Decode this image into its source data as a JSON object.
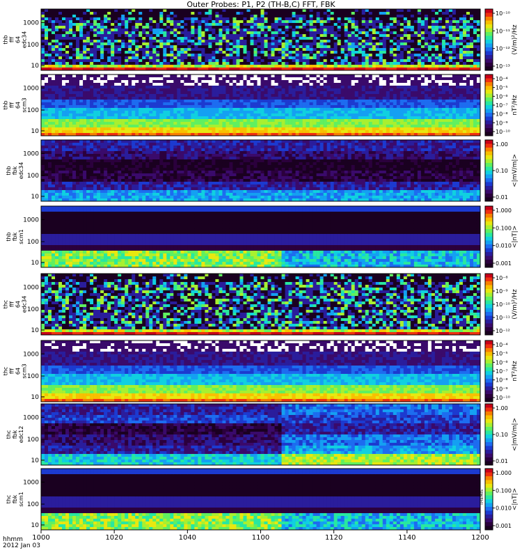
{
  "title": "Outer Probes: P1, P2 (TH-B,C) FFT, FBK",
  "x_axis": {
    "row1_label": "hhmm",
    "row2_label": "2012 Jan 03",
    "ticks": [
      "1000",
      "1020",
      "1040",
      "1100",
      "1120",
      "1140",
      "1200"
    ]
  },
  "side_note": "THEMIS",
  "chart_data": [
    {
      "type": "heatmap",
      "probe": "thb",
      "instrument": "fff",
      "channel_lines": [
        "thb",
        "fff",
        "64",
        "edc34"
      ],
      "y_ticks": [
        "10",
        "100",
        "1000"
      ],
      "y_scale": "log",
      "colorbar": {
        "label": "(V/m)²/Hz",
        "ticks": [
          "10⁻¹⁰",
          "10⁻¹¹",
          "10⁻¹²",
          "10⁻¹³"
        ]
      }
    },
    {
      "type": "heatmap",
      "probe": "thb",
      "instrument": "fff",
      "channel_lines": [
        "thb",
        "fff",
        "64",
        "scm3"
      ],
      "y_ticks": [
        "10",
        "100",
        "1000"
      ],
      "y_scale": "log",
      "colorbar": {
        "label": "nT²/Hz",
        "ticks": [
          "10⁻⁴",
          "10⁻⁵",
          "10⁻⁶",
          "10⁻⁷",
          "10⁻⁸",
          "10⁻⁹",
          "10⁻¹⁰"
        ]
      }
    },
    {
      "type": "heatmap",
      "probe": "thb",
      "instrument": "fbk",
      "channel_lines": [
        "thb",
        "fbk",
        "edc34"
      ],
      "y_ticks": [
        "10",
        "100",
        "1000"
      ],
      "y_scale": "log",
      "colorbar": {
        "label": "<|mV/m|>",
        "ticks": [
          "1.00",
          "0.10",
          "0.01"
        ]
      }
    },
    {
      "type": "heatmap",
      "probe": "thb",
      "instrument": "fbk",
      "channel_lines": [
        "thb",
        "fbk",
        "scm1"
      ],
      "y_ticks": [
        "10",
        "100",
        "1000"
      ],
      "y_scale": "log",
      "colorbar": {
        "label": "<|nT|>",
        "ticks": [
          "1.000",
          "0.100",
          "0.010",
          "0.001"
        ]
      }
    },
    {
      "type": "heatmap",
      "probe": "thc",
      "instrument": "fff",
      "channel_lines": [
        "thc",
        "fff",
        "64",
        "edc34"
      ],
      "y_ticks": [
        "10",
        "100",
        "1000"
      ],
      "y_scale": "log",
      "colorbar": {
        "label": "(V/m)²/Hz",
        "ticks": [
          "10⁻⁸",
          "10⁻⁹",
          "10⁻¹⁰",
          "10⁻¹¹",
          "10⁻¹²"
        ]
      }
    },
    {
      "type": "heatmap",
      "probe": "thc",
      "instrument": "fff",
      "channel_lines": [
        "thc",
        "fff",
        "64",
        "scm3"
      ],
      "y_ticks": [
        "10",
        "100",
        "1000"
      ],
      "y_scale": "log",
      "colorbar": {
        "label": "nT²/Hz",
        "ticks": [
          "10⁻⁴",
          "10⁻⁵",
          "10⁻⁶",
          "10⁻⁷",
          "10⁻⁸",
          "10⁻⁹",
          "10⁻¹⁰"
        ]
      }
    },
    {
      "type": "heatmap",
      "probe": "thc",
      "instrument": "fbk",
      "channel_lines": [
        "thc",
        "fbk",
        "edc12"
      ],
      "y_ticks": [
        "10",
        "100",
        "1000"
      ],
      "y_scale": "log",
      "colorbar": {
        "label": "<|mV/m|>",
        "ticks": [
          "1.00",
          "0.10",
          "0.01"
        ]
      }
    },
    {
      "type": "heatmap",
      "probe": "thc",
      "instrument": "fbk",
      "channel_lines": [
        "thc",
        "fbk",
        "scm1"
      ],
      "y_ticks": [
        "10",
        "100",
        "1000"
      ],
      "y_scale": "log",
      "colorbar": {
        "label": "<|nT|>",
        "ticks": [
          "1.000",
          "0.100",
          "0.010",
          "0.001"
        ]
      }
    }
  ]
}
